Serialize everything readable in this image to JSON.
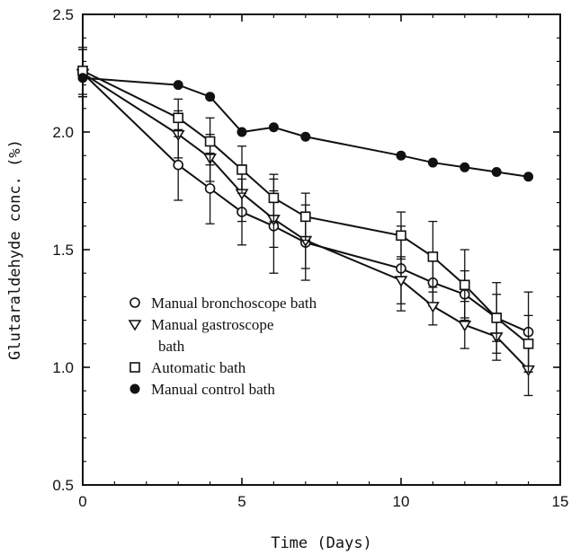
{
  "chart_data": {
    "type": "line",
    "title": "",
    "xlabel": "Time (Days)",
    "ylabel": "Glutaraldehyde conc. (%)",
    "xlim": [
      0,
      15
    ],
    "ylim": [
      0.5,
      2.5
    ],
    "x_ticks": [
      "0",
      "5",
      "10",
      "15"
    ],
    "y_ticks": [
      "0.5",
      "1.0",
      "1.5",
      "2.0",
      "2.5"
    ],
    "grid": false,
    "legend_position": "lower-left",
    "series": [
      {
        "name": "Manual bronchoscope bath",
        "marker": "open-circle",
        "x": [
          0,
          3,
          4,
          5,
          6,
          7,
          10,
          11,
          12,
          13,
          14
        ],
        "y": [
          2.25,
          1.86,
          1.76,
          1.66,
          1.6,
          1.53,
          1.42,
          1.36,
          1.31,
          1.21,
          1.15
        ],
        "err": [
          0.1,
          0.15,
          0.15,
          0.14,
          0.2,
          0.16,
          0.18,
          0.1,
          0.1,
          0.1,
          0.17
        ]
      },
      {
        "name": "Manual gastroscope bath",
        "legend_lines": [
          "Manual gastroscope",
          "bath"
        ],
        "marker": "open-triangle-down",
        "x": [
          0,
          3,
          4,
          5,
          6,
          7,
          10,
          11,
          12,
          13,
          14
        ],
        "y": [
          2.25,
          1.99,
          1.89,
          1.74,
          1.63,
          1.54,
          1.37,
          1.26,
          1.18,
          1.13,
          0.99
        ],
        "err": [
          0.1,
          0.1,
          0.1,
          0.12,
          0.12,
          0.12,
          0.1,
          0.08,
          0.1,
          0.1,
          0.11
        ]
      },
      {
        "name": "Automatic bath",
        "marker": "open-square",
        "x": [
          0,
          3,
          4,
          5,
          6,
          7,
          10,
          11,
          12,
          13,
          14
        ],
        "y": [
          2.26,
          2.06,
          1.96,
          1.84,
          1.72,
          1.64,
          1.56,
          1.47,
          1.35,
          1.21,
          1.1
        ],
        "err": [
          0.1,
          0.08,
          0.1,
          0.1,
          0.1,
          0.1,
          0.1,
          0.15,
          0.15,
          0.15,
          0.12
        ]
      },
      {
        "name": "Manual control bath",
        "marker": "filled-circle",
        "x": [
          0,
          3,
          4,
          5,
          6,
          7,
          10,
          11,
          12,
          13,
          14
        ],
        "y": [
          2.23,
          2.2,
          2.15,
          2.0,
          2.02,
          1.98,
          1.9,
          1.87,
          1.85,
          1.83,
          1.81
        ],
        "err": null
      }
    ]
  }
}
